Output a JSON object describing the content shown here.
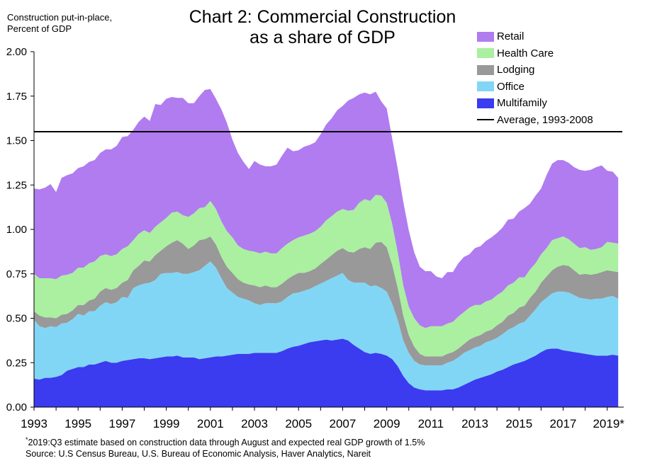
{
  "title_line1": "Chart 2: Commercial Construction",
  "title_line2": "as a share of GDP",
  "ylabel_line1": "Construction put-in-place,",
  "ylabel_line2": "Percent of GDP",
  "footnote_mark": "*",
  "footnote": "2019:Q3 estimate based on construction data through August and expected real GDP growth of 1.5%",
  "source": "Source: U.S Census Bureau, U.S. Bureau of Economic Analysis, Haver Analytics, Nareit",
  "chart_data": {
    "type": "area",
    "stacked": true,
    "x": [
      1993.0,
      1993.25,
      1993.5,
      1993.75,
      1994.0,
      1994.25,
      1994.5,
      1994.75,
      1995.0,
      1995.25,
      1995.5,
      1995.75,
      1996.0,
      1996.25,
      1996.5,
      1996.75,
      1997.0,
      1997.25,
      1997.5,
      1997.75,
      1998.0,
      1998.25,
      1998.5,
      1998.75,
      1999.0,
      1999.25,
      1999.5,
      1999.75,
      2000.0,
      2000.25,
      2000.5,
      2000.75,
      2001.0,
      2001.25,
      2001.5,
      2001.75,
      2002.0,
      2002.25,
      2002.5,
      2002.75,
      2003.0,
      2003.25,
      2003.5,
      2003.75,
      2004.0,
      2004.25,
      2004.5,
      2004.75,
      2005.0,
      2005.25,
      2005.5,
      2005.75,
      2006.0,
      2006.25,
      2006.5,
      2006.75,
      2007.0,
      2007.25,
      2007.5,
      2007.75,
      2008.0,
      2008.25,
      2008.5,
      2008.75,
      2009.0,
      2009.25,
      2009.5,
      2009.75,
      2010.0,
      2010.25,
      2010.5,
      2010.75,
      2011.0,
      2011.25,
      2011.5,
      2011.75,
      2012.0,
      2012.25,
      2012.5,
      2012.75,
      2013.0,
      2013.25,
      2013.5,
      2013.75,
      2014.0,
      2014.25,
      2014.5,
      2014.75,
      2015.0,
      2015.25,
      2015.5,
      2015.75,
      2016.0,
      2016.25,
      2016.5,
      2016.75,
      2017.0,
      2017.25,
      2017.5,
      2017.75,
      2018.0,
      2018.25,
      2018.5,
      2018.75,
      2019.0,
      2019.25,
      2019.5
    ],
    "series": [
      {
        "name": "Multifamily",
        "color": "#3b3bf0",
        "values": [
          0.16,
          0.155,
          0.165,
          0.165,
          0.17,
          0.18,
          0.205,
          0.215,
          0.225,
          0.225,
          0.24,
          0.24,
          0.25,
          0.26,
          0.25,
          0.25,
          0.26,
          0.265,
          0.27,
          0.275,
          0.275,
          0.27,
          0.275,
          0.28,
          0.285,
          0.285,
          0.29,
          0.28,
          0.28,
          0.28,
          0.27,
          0.275,
          0.28,
          0.285,
          0.285,
          0.29,
          0.295,
          0.3,
          0.3,
          0.3,
          0.305,
          0.305,
          0.305,
          0.305,
          0.305,
          0.315,
          0.33,
          0.34,
          0.345,
          0.355,
          0.365,
          0.37,
          0.375,
          0.38,
          0.375,
          0.38,
          0.385,
          0.375,
          0.35,
          0.33,
          0.31,
          0.3,
          0.305,
          0.3,
          0.29,
          0.27,
          0.23,
          0.175,
          0.135,
          0.11,
          0.1,
          0.095,
          0.095,
          0.095,
          0.095,
          0.1,
          0.1,
          0.11,
          0.125,
          0.14,
          0.155,
          0.165,
          0.175,
          0.185,
          0.2,
          0.21,
          0.225,
          0.24,
          0.25,
          0.26,
          0.275,
          0.29,
          0.31,
          0.325,
          0.33,
          0.33,
          0.32,
          0.315,
          0.31,
          0.305,
          0.3,
          0.295,
          0.29,
          0.29,
          0.29,
          0.295,
          0.29
        ]
      },
      {
        "name": "Office",
        "color": "#82d6f5",
        "values": [
          0.33,
          0.3,
          0.28,
          0.29,
          0.28,
          0.29,
          0.27,
          0.28,
          0.3,
          0.29,
          0.3,
          0.3,
          0.32,
          0.33,
          0.33,
          0.34,
          0.36,
          0.35,
          0.4,
          0.41,
          0.42,
          0.43,
          0.44,
          0.47,
          0.47,
          0.47,
          0.47,
          0.47,
          0.47,
          0.48,
          0.5,
          0.52,
          0.54,
          0.5,
          0.44,
          0.38,
          0.35,
          0.32,
          0.31,
          0.3,
          0.28,
          0.27,
          0.28,
          0.28,
          0.28,
          0.28,
          0.29,
          0.3,
          0.3,
          0.3,
          0.3,
          0.31,
          0.32,
          0.33,
          0.35,
          0.36,
          0.37,
          0.34,
          0.35,
          0.37,
          0.39,
          0.38,
          0.38,
          0.37,
          0.36,
          0.31,
          0.26,
          0.2,
          0.17,
          0.15,
          0.14,
          0.14,
          0.14,
          0.14,
          0.14,
          0.15,
          0.16,
          0.17,
          0.18,
          0.18,
          0.18,
          0.18,
          0.19,
          0.19,
          0.19,
          0.2,
          0.21,
          0.21,
          0.22,
          0.22,
          0.24,
          0.26,
          0.28,
          0.29,
          0.31,
          0.32,
          0.33,
          0.33,
          0.32,
          0.31,
          0.31,
          0.31,
          0.32,
          0.32,
          0.33,
          0.33,
          0.32
        ]
      },
      {
        "name": "Lodging",
        "color": "#999999",
        "values": [
          0.05,
          0.06,
          0.06,
          0.05,
          0.05,
          0.05,
          0.05,
          0.05,
          0.05,
          0.06,
          0.06,
          0.07,
          0.08,
          0.08,
          0.08,
          0.08,
          0.08,
          0.1,
          0.1,
          0.11,
          0.13,
          0.12,
          0.14,
          0.13,
          0.15,
          0.17,
          0.18,
          0.17,
          0.14,
          0.15,
          0.17,
          0.15,
          0.14,
          0.13,
          0.12,
          0.12,
          0.11,
          0.1,
          0.09,
          0.09,
          0.1,
          0.1,
          0.1,
          0.09,
          0.09,
          0.1,
          0.1,
          0.1,
          0.11,
          0.1,
          0.1,
          0.1,
          0.11,
          0.12,
          0.13,
          0.14,
          0.14,
          0.16,
          0.17,
          0.19,
          0.2,
          0.21,
          0.24,
          0.26,
          0.25,
          0.22,
          0.18,
          0.14,
          0.1,
          0.08,
          0.06,
          0.05,
          0.05,
          0.05,
          0.05,
          0.05,
          0.05,
          0.05,
          0.05,
          0.06,
          0.06,
          0.06,
          0.06,
          0.06,
          0.07,
          0.07,
          0.08,
          0.08,
          0.09,
          0.09,
          0.1,
          0.1,
          0.11,
          0.12,
          0.13,
          0.14,
          0.15,
          0.15,
          0.14,
          0.13,
          0.14,
          0.14,
          0.14,
          0.15,
          0.15,
          0.14,
          0.15
        ]
      },
      {
        "name": "Health Care",
        "color": "#aaf0a0",
        "values": [
          0.21,
          0.21,
          0.22,
          0.22,
          0.22,
          0.22,
          0.22,
          0.21,
          0.21,
          0.21,
          0.21,
          0.21,
          0.2,
          0.19,
          0.19,
          0.19,
          0.19,
          0.19,
          0.17,
          0.18,
          0.17,
          0.16,
          0.16,
          0.16,
          0.16,
          0.17,
          0.16,
          0.16,
          0.18,
          0.18,
          0.18,
          0.18,
          0.2,
          0.2,
          0.2,
          0.2,
          0.2,
          0.19,
          0.19,
          0.19,
          0.19,
          0.19,
          0.19,
          0.19,
          0.19,
          0.2,
          0.2,
          0.2,
          0.2,
          0.21,
          0.21,
          0.21,
          0.21,
          0.22,
          0.22,
          0.22,
          0.22,
          0.23,
          0.24,
          0.26,
          0.27,
          0.27,
          0.27,
          0.26,
          0.25,
          0.23,
          0.2,
          0.17,
          0.16,
          0.16,
          0.16,
          0.16,
          0.17,
          0.17,
          0.17,
          0.17,
          0.17,
          0.18,
          0.18,
          0.18,
          0.18,
          0.17,
          0.17,
          0.17,
          0.17,
          0.17,
          0.17,
          0.17,
          0.17,
          0.16,
          0.16,
          0.16,
          0.16,
          0.16,
          0.17,
          0.16,
          0.16,
          0.15,
          0.15,
          0.15,
          0.15,
          0.14,
          0.14,
          0.14,
          0.16,
          0.16,
          0.16
        ]
      },
      {
        "name": "Retail",
        "color": "#b07cf0",
        "values": [
          0.48,
          0.5,
          0.51,
          0.53,
          0.49,
          0.55,
          0.56,
          0.56,
          0.56,
          0.57,
          0.57,
          0.57,
          0.58,
          0.59,
          0.6,
          0.61,
          0.63,
          0.62,
          0.62,
          0.63,
          0.64,
          0.63,
          0.69,
          0.66,
          0.67,
          0.65,
          0.64,
          0.66,
          0.64,
          0.62,
          0.63,
          0.66,
          0.63,
          0.62,
          0.63,
          0.61,
          0.55,
          0.52,
          0.49,
          0.46,
          0.51,
          0.5,
          0.48,
          0.49,
          0.5,
          0.52,
          0.54,
          0.5,
          0.49,
          0.5,
          0.5,
          0.5,
          0.52,
          0.54,
          0.55,
          0.57,
          0.58,
          0.62,
          0.63,
          0.61,
          0.6,
          0.6,
          0.58,
          0.53,
          0.53,
          0.48,
          0.47,
          0.47,
          0.43,
          0.37,
          0.33,
          0.32,
          0.31,
          0.28,
          0.27,
          0.29,
          0.28,
          0.3,
          0.31,
          0.3,
          0.32,
          0.33,
          0.34,
          0.35,
          0.35,
          0.36,
          0.37,
          0.36,
          0.37,
          0.39,
          0.37,
          0.38,
          0.37,
          0.41,
          0.43,
          0.44,
          0.43,
          0.43,
          0.43,
          0.44,
          0.43,
          0.45,
          0.46,
          0.46,
          0.4,
          0.4,
          0.37
        ]
      }
    ],
    "reference_line": {
      "name": "Average, 1993-2008",
      "value": 1.55,
      "color": "#000000"
    },
    "ylim": [
      0,
      2
    ],
    "yticks": [
      "0.00",
      "0.25",
      "0.50",
      "0.75",
      "1.00",
      "1.25",
      "1.50",
      "1.75",
      "2.00"
    ],
    "xlim": [
      1993,
      2019.75
    ],
    "xticks": [
      1993,
      1995,
      1997,
      1999,
      2001,
      2003,
      2005,
      2007,
      2009,
      2011,
      2013,
      2015,
      2017,
      2019
    ],
    "xtick_labels": [
      "1993",
      "1995",
      "1997",
      "1999",
      "2001",
      "2003",
      "2005",
      "2007",
      "2009",
      "2011",
      "2013",
      "2015",
      "2017",
      "2019*"
    ],
    "legend_order": [
      "Retail",
      "Health Care",
      "Lodging",
      "Office",
      "Multifamily",
      "Average, 1993-2008"
    ],
    "legend_position": "top-right",
    "grid": false
  }
}
